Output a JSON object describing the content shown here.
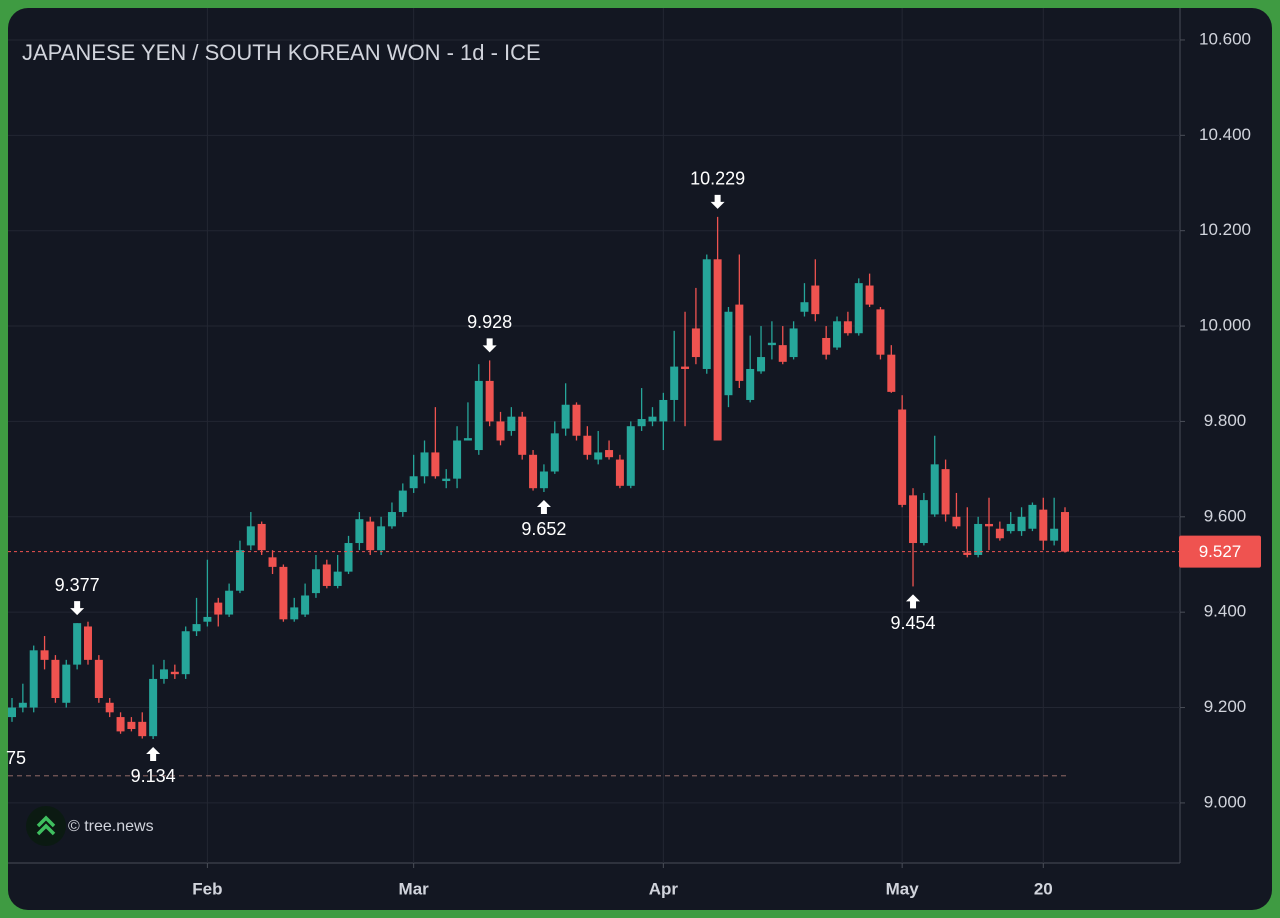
{
  "chart_data": {
    "type": "candlestick",
    "title": "JAPANESE YEN / SOUTH KOREAN WON - 1d - ICE",
    "categories": [
      null,
      null,
      null,
      null,
      null,
      null,
      null,
      null,
      null,
      null,
      null,
      null,
      null,
      null,
      null,
      null,
      null,
      null,
      "Feb",
      null,
      null,
      null,
      null,
      null,
      null,
      null,
      null,
      null,
      null,
      null,
      null,
      null,
      null,
      null,
      null,
      null,
      null,
      "Mar",
      null,
      null,
      null,
      null,
      null,
      null,
      null,
      null,
      null,
      null,
      null,
      null,
      null,
      null,
      null,
      null,
      null,
      null,
      null,
      null,
      null,
      null,
      "Apr",
      null,
      null,
      null,
      null,
      null,
      null,
      null,
      null,
      null,
      null,
      null,
      null,
      null,
      null,
      null,
      null,
      null,
      null,
      null,
      null,
      null,
      "May",
      null,
      null,
      null,
      null,
      null,
      null,
      null,
      null,
      null,
      null,
      null,
      null,
      "20",
      null,
      null
    ],
    "open": [
      9.18,
      9.2,
      9.2,
      9.32,
      9.3,
      9.21,
      9.29,
      9.37,
      9.3,
      9.21,
      9.18,
      9.17,
      9.17,
      9.14,
      9.26,
      9.275,
      9.27,
      9.36,
      9.38,
      9.42,
      9.395,
      9.445,
      9.54,
      9.585,
      9.515,
      9.495,
      9.385,
      9.395,
      9.44,
      9.5,
      9.455,
      9.485,
      9.545,
      9.59,
      9.53,
      9.58,
      9.61,
      9.66,
      9.685,
      9.735,
      9.675,
      9.68,
      9.76,
      9.74,
      9.885,
      9.8,
      9.78,
      9.81,
      9.73,
      9.66,
      9.695,
      9.785,
      9.835,
      9.77,
      9.72,
      9.74,
      9.72,
      9.665,
      9.79,
      9.8,
      9.8,
      9.845,
      9.915,
      9.995,
      9.91,
      10.14,
      9.855,
      10.045,
      9.845,
      9.905,
      9.96,
      9.96,
      9.935,
      10.03,
      10.085,
      9.975,
      9.955,
      10.01,
      9.985,
      10.085,
      10.035,
      9.94,
      9.825,
      9.645,
      9.545,
      9.605,
      9.7,
      9.6,
      9.525,
      9.52,
      9.585,
      9.575,
      9.57,
      9.57,
      9.575,
      9.615,
      9.55,
      9.61
    ],
    "high": [
      9.22,
      9.25,
      9.33,
      9.35,
      9.31,
      9.3,
      9.377,
      9.38,
      9.31,
      9.22,
      9.19,
      9.18,
      9.19,
      9.29,
      9.3,
      9.29,
      9.37,
      9.43,
      9.51,
      9.43,
      9.46,
      9.55,
      9.61,
      9.59,
      9.53,
      9.5,
      9.43,
      9.46,
      9.52,
      9.51,
      9.52,
      9.56,
      9.61,
      9.6,
      9.6,
      9.63,
      9.67,
      9.73,
      9.76,
      9.83,
      9.7,
      9.79,
      9.84,
      9.92,
      9.928,
      9.82,
      9.83,
      9.82,
      9.74,
      9.71,
      9.8,
      9.88,
      9.84,
      9.79,
      9.78,
      9.76,
      9.73,
      9.8,
      9.87,
      9.83,
      9.86,
      9.99,
      10.03,
      10.08,
      10.15,
      10.229,
      10.04,
      10.15,
      9.98,
      10.0,
      10.01,
      10.0,
      10.01,
      10.09,
      10.14,
      10.0,
      10.02,
      10.03,
      10.1,
      10.11,
      10.04,
      9.96,
      9.855,
      9.66,
      9.65,
      9.77,
      9.72,
      9.65,
      9.62,
      9.6,
      9.64,
      9.59,
      9.61,
      9.62,
      9.63,
      9.64,
      9.64,
      9.62
    ],
    "low": [
      9.17,
      9.19,
      9.19,
      9.28,
      9.21,
      9.2,
      9.28,
      9.29,
      9.21,
      9.18,
      9.145,
      9.15,
      9.135,
      9.134,
      9.25,
      9.26,
      9.26,
      9.35,
      9.37,
      9.37,
      9.39,
      9.44,
      9.53,
      9.52,
      9.48,
      9.38,
      9.38,
      9.39,
      9.43,
      9.45,
      9.45,
      9.48,
      9.53,
      9.52,
      9.52,
      9.575,
      9.6,
      9.65,
      9.67,
      9.68,
      9.66,
      9.66,
      9.76,
      9.73,
      9.79,
      9.75,
      9.77,
      9.72,
      9.655,
      9.652,
      9.69,
      9.77,
      9.76,
      9.72,
      9.71,
      9.72,
      9.66,
      9.66,
      9.78,
      9.79,
      9.74,
      9.8,
      9.79,
      9.92,
      9.9,
      9.76,
      9.83,
      9.87,
      9.84,
      9.9,
      9.93,
      9.92,
      9.93,
      10.02,
      10.01,
      9.93,
      9.95,
      9.98,
      9.98,
      10.04,
      9.93,
      9.86,
      9.62,
      9.454,
      9.54,
      9.6,
      9.59,
      9.575,
      9.515,
      9.515,
      9.53,
      9.55,
      9.565,
      9.56,
      9.57,
      9.53,
      9.54,
      9.525
    ],
    "close": [
      9.2,
      9.21,
      9.32,
      9.3,
      9.22,
      9.29,
      9.377,
      9.3,
      9.22,
      9.19,
      9.15,
      9.155,
      9.14,
      9.26,
      9.28,
      9.27,
      9.36,
      9.375,
      9.39,
      9.395,
      9.445,
      9.53,
      9.58,
      9.53,
      9.495,
      9.385,
      9.41,
      9.435,
      9.49,
      9.455,
      9.485,
      9.545,
      9.595,
      9.53,
      9.58,
      9.61,
      9.655,
      9.685,
      9.735,
      9.685,
      9.68,
      9.76,
      9.765,
      9.885,
      9.8,
      9.76,
      9.81,
      9.73,
      9.66,
      9.695,
      9.775,
      9.835,
      9.77,
      9.73,
      9.735,
      9.725,
      9.665,
      9.79,
      9.805,
      9.81,
      9.845,
      9.915,
      9.91,
      9.935,
      10.14,
      9.76,
      10.03,
      9.885,
      9.91,
      9.935,
      9.965,
      9.925,
      9.995,
      10.05,
      10.025,
      9.94,
      10.01,
      9.985,
      10.09,
      10.045,
      9.94,
      9.862,
      9.625,
      9.545,
      9.635,
      9.71,
      9.605,
      9.58,
      9.52,
      9.585,
      9.58,
      9.555,
      9.585,
      9.6,
      9.625,
      9.55,
      9.575,
      9.527
    ],
    "up_color": "#26a69a",
    "down_color": "#ef5350",
    "ylim": [
      8.874,
      10.667
    ],
    "yticks": [
      {
        "value": 9.0,
        "label": "9.000"
      },
      {
        "value": 9.2,
        "label": "9.200"
      },
      {
        "value": 9.4,
        "label": "9.400"
      },
      {
        "value": 9.6,
        "label": "9.600"
      },
      {
        "value": 9.8,
        "label": "9.800"
      },
      {
        "value": 10.0,
        "label": "10.000"
      },
      {
        "value": 10.2,
        "label": "10.200"
      },
      {
        "value": 10.4,
        "label": "10.400"
      },
      {
        "value": 10.6,
        "label": "10.600"
      }
    ],
    "grid": true,
    "annotations": [
      {
        "value": 9.377,
        "side": "high"
      },
      {
        "value": 9.134,
        "side": "low"
      },
      {
        "value": 9.928,
        "side": "high"
      },
      {
        "value": 9.652,
        "side": "low"
      },
      {
        "value": 10.229,
        "side": "high"
      },
      {
        "value": 9.454,
        "side": "low"
      }
    ],
    "edge_label": "75",
    "last_price": 9.527,
    "reference_line": 9.057,
    "watermark": "© tree.news"
  }
}
